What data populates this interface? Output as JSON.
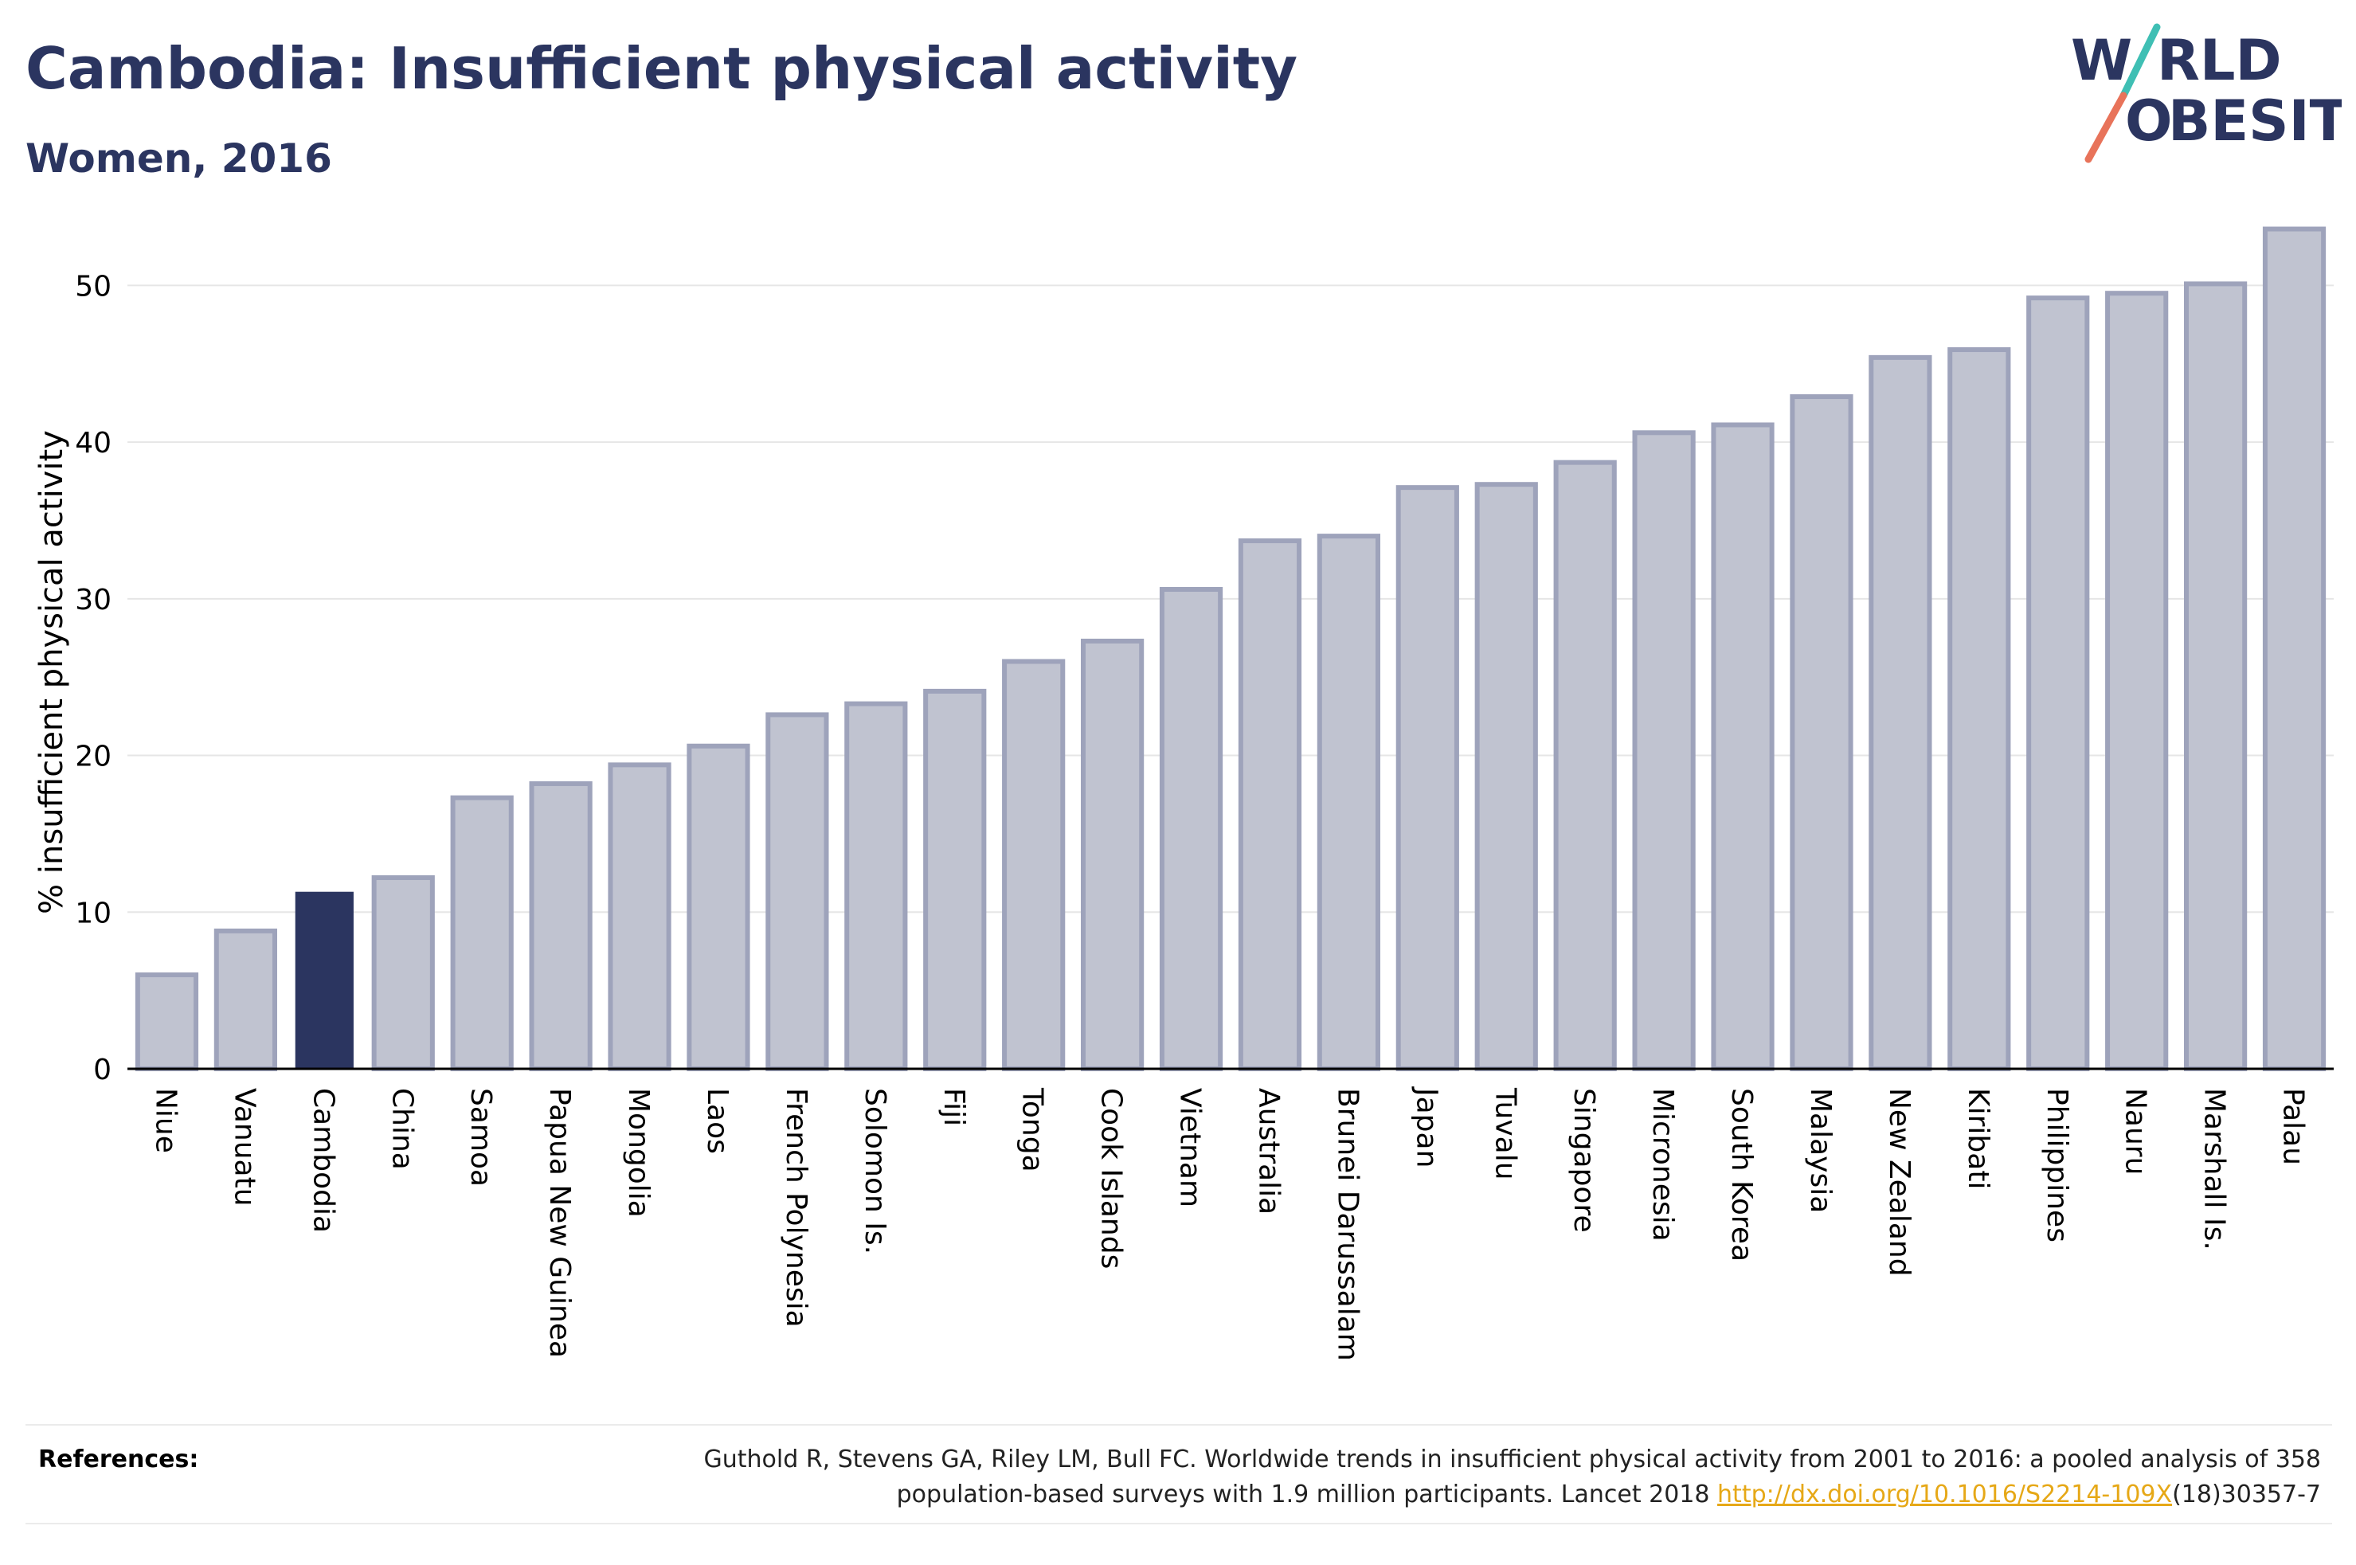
{
  "header": {
    "title": "Cambodia: Insufficient physical activity",
    "subtitle": "Women, 2016"
  },
  "logo": {
    "line1_left": "W",
    "line1_right": "RLD",
    "line2_left": "O",
    "line2_right": "BESITY",
    "colors": {
      "text": "#2b3560",
      "slash_top": "#3fbfb4",
      "slash_bottom": "#e8735a"
    }
  },
  "chart_data": {
    "type": "bar",
    "ylabel": "% insufficient physical activity",
    "xlabel": "",
    "ylim": [
      0,
      55
    ],
    "yticks": [
      0,
      10,
      20,
      30,
      40,
      50
    ],
    "grid": true,
    "categories": [
      "Niue",
      "Vanuatu",
      "Cambodia",
      "China",
      "Samoa",
      "Papua New Guinea",
      "Mongolia",
      "Laos",
      "French Polynesia",
      "Solomon Is.",
      "Fiji",
      "Tonga",
      "Cook Islands",
      "Vietnam",
      "Australia",
      "Brunei Darussalam",
      "Japan",
      "Tuvalu",
      "Singapore",
      "Micronesia",
      "South Korea",
      "Malaysia",
      "New Zealand",
      "Kiribati",
      "Philippines",
      "Nauru",
      "Marshall Is.",
      "Palau"
    ],
    "values": [
      6.0,
      8.8,
      11.3,
      12.2,
      17.3,
      18.2,
      19.4,
      20.6,
      22.6,
      23.3,
      24.1,
      26.0,
      27.3,
      30.6,
      33.7,
      34.0,
      37.1,
      37.3,
      38.7,
      40.6,
      41.1,
      42.9,
      45.4,
      45.9,
      49.2,
      49.5,
      50.1,
      53.6
    ],
    "highlight": "Cambodia",
    "colors": {
      "bar": "#c0c3d0",
      "bar_border": "#9ea3bb",
      "highlight": "#2b3560",
      "grid": "#e6e6e6",
      "axis": "#000000"
    }
  },
  "references": {
    "label": "References:",
    "text_line1": "Guthold R, Stevens GA, Riley LM, Bull FC. Worldwide trends in insufficient physical activity from 2001 to 2016: a pooled analysis of 358",
    "text_line2_prefix": "population-based surveys with 1.9 million participants. Lancet 2018 ",
    "link": "http://dx.doi.org/10.1016/S2214-109X",
    "text_line2_suffix": "(18)30357-7"
  }
}
